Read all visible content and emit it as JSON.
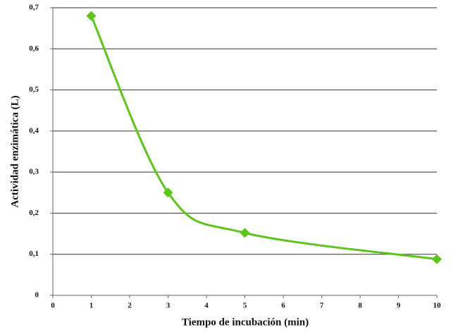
{
  "chart_data": {
    "type": "line",
    "xlabel": "Tiempo de incubación (min)",
    "ylabel": "Actividad enzimática (L)",
    "x": [
      1,
      3,
      5,
      10
    ],
    "values": [
      0.68,
      0.25,
      0.152,
      0.088
    ],
    "color": "#5cc41a",
    "smooth": true,
    "marker": "diamond",
    "grid": true,
    "xlim": [
      0,
      10
    ],
    "xticks": [
      0,
      1,
      2,
      3,
      4,
      5,
      6,
      7,
      8,
      9,
      10
    ],
    "ylim": [
      0,
      0.7
    ],
    "yticks": [
      0,
      {
        "value": 0.1,
        "label": "0,1"
      },
      {
        "value": 0.2,
        "label": "0,2"
      },
      {
        "value": 0.3,
        "label": "0,3"
      },
      {
        "value": 0.4,
        "label": "0,4"
      },
      {
        "value": 0.5,
        "label": "0,5"
      },
      {
        "value": 0.6,
        "label": "0,6"
      },
      {
        "value": 0.7,
        "label": "0,7"
      }
    ]
  }
}
